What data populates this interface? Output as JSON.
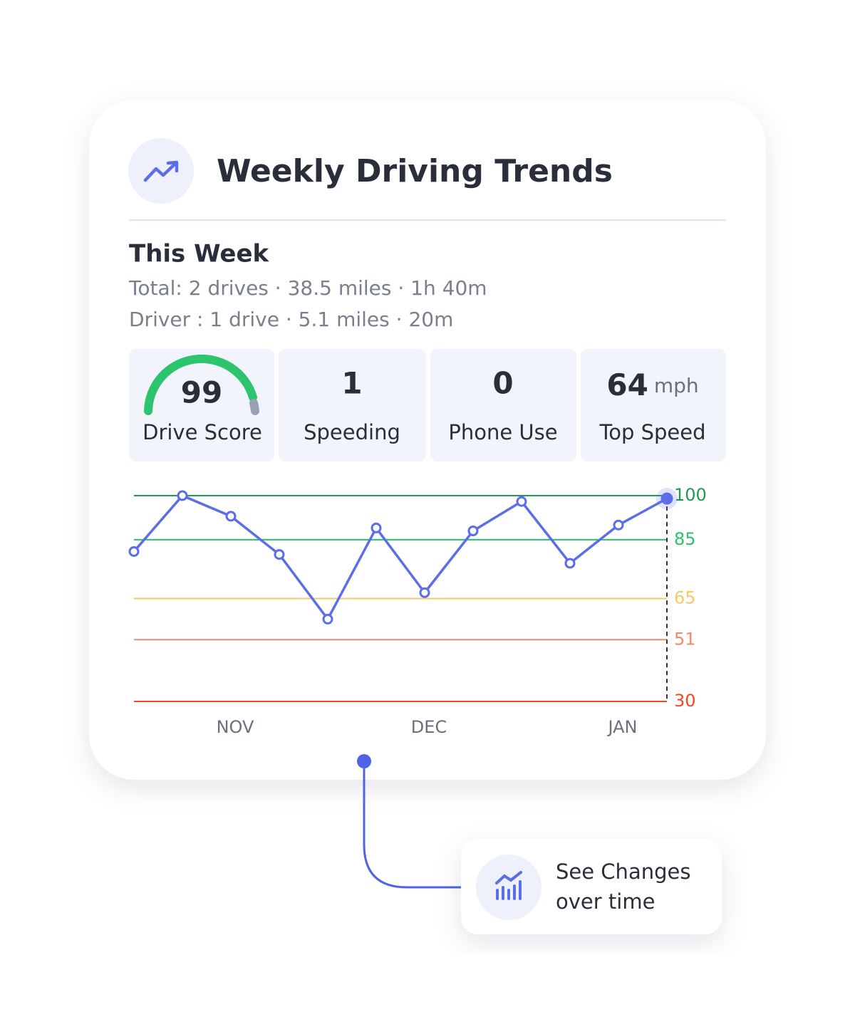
{
  "header": {
    "title": "Weekly Driving Trends"
  },
  "summary": {
    "heading": "This Week",
    "total": "Total: 2 drives · 38.5 miles · 1h 40m",
    "driver": "Driver : 1 drive · 5.1 miles · 20m"
  },
  "stats": [
    {
      "value": 99,
      "label": "Drive Score"
    },
    {
      "value": 1,
      "label": "Speeding"
    },
    {
      "value": 0,
      "label": "Phone Use"
    },
    {
      "value": 64,
      "unit": "mph",
      "label": "Top Speed"
    }
  ],
  "chart_data": {
    "type": "line",
    "categories": [
      null,
      null,
      "NOV",
      null,
      null,
      null,
      "DEC",
      null,
      null,
      null,
      "JAN",
      null
    ],
    "values": [
      81,
      100,
      93,
      80,
      58,
      89,
      67,
      88,
      98,
      77,
      90,
      99
    ],
    "color": "#5b6ee8",
    "ylim": [
      30,
      100
    ],
    "yticks": [
      100,
      85,
      65,
      51,
      30
    ],
    "ytick_colors": [
      "#1f9a52",
      "#2cbf6c",
      "#f5c86a",
      "#f08a6c",
      "#ef4a23"
    ]
  },
  "callout": {
    "lines": [
      "See Changes",
      "over time"
    ]
  }
}
